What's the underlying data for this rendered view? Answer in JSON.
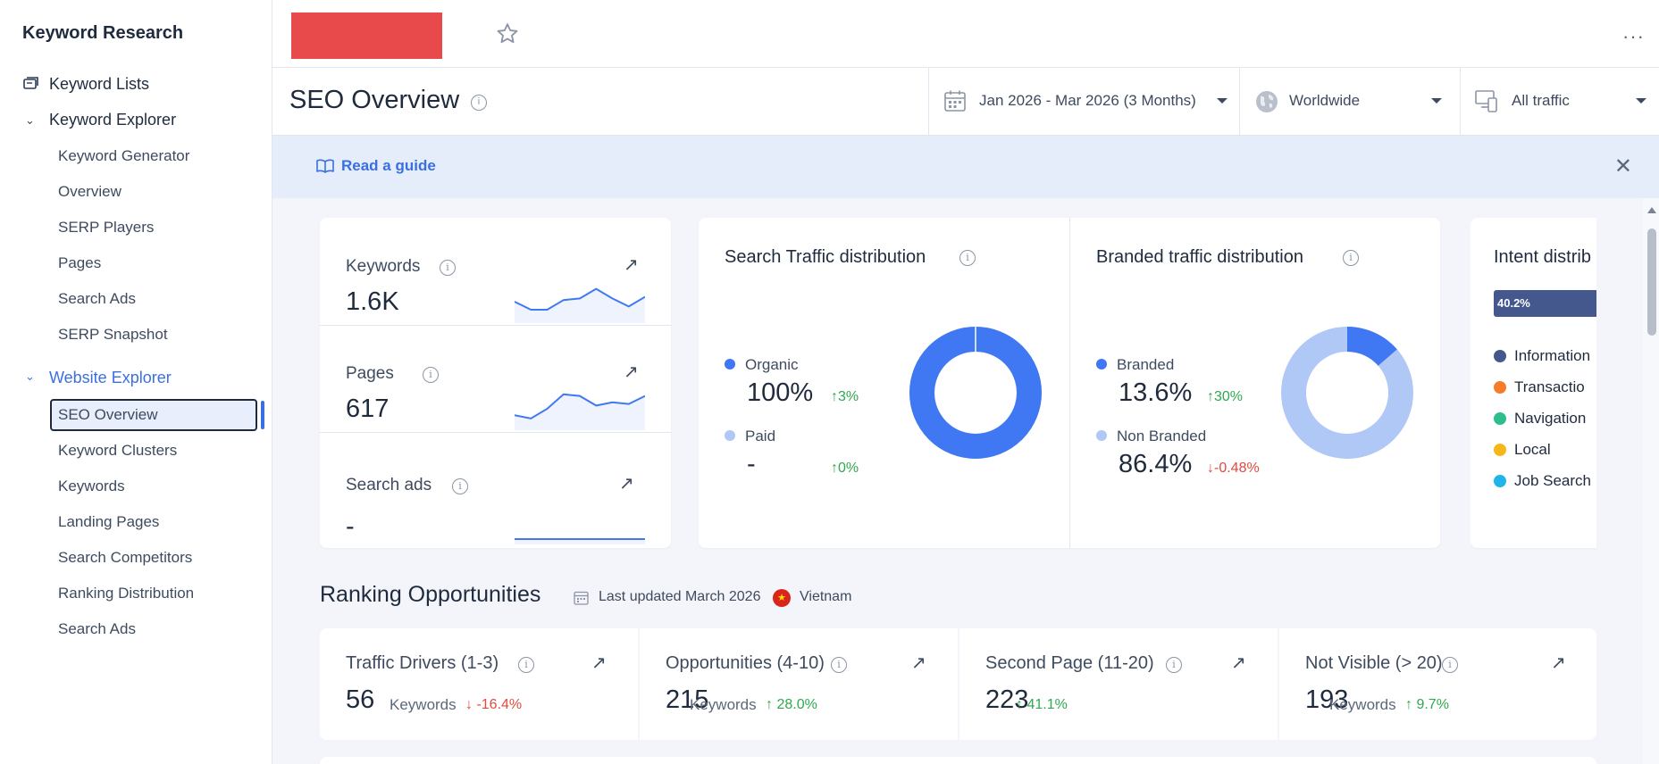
{
  "sidebar": {
    "title": "Keyword Research",
    "keyword_lists": "Keyword Lists",
    "keyword_explorer": "Keyword Explorer",
    "keyword_explorer_items": [
      "Keyword Generator",
      "Overview",
      "SERP Players",
      "Pages",
      "Search Ads",
      "SERP Snapshot"
    ],
    "website_explorer": "Website Explorer",
    "website_explorer_items": [
      "SEO Overview",
      "Keyword Clusters",
      "Keywords",
      "Landing Pages",
      "Search Competitors",
      "Ranking Distribution",
      "Search Ads"
    ],
    "selected": "SEO Overview"
  },
  "topbar": {
    "more_label": "···"
  },
  "header": {
    "title": "SEO Overview",
    "date_range": "Jan 2026 - Mar 2026 (3 Months)",
    "location": "Worldwide",
    "traffic": "All traffic"
  },
  "guide": {
    "link": "Read a guide",
    "close": "✕"
  },
  "metrics": [
    {
      "label": "Keywords",
      "value": "1.6K",
      "sparkline": [
        0.5,
        0.25,
        0.25,
        0.55,
        0.6,
        0.9,
        0.6,
        0.35,
        0.65
      ]
    },
    {
      "label": "Pages",
      "value": "617",
      "sparkline": [
        0.3,
        0.2,
        0.5,
        0.95,
        0.9,
        0.6,
        0.7,
        0.65,
        0.9
      ]
    },
    {
      "label": "Search ads",
      "value": "-",
      "sparkline": [
        0,
        0,
        0,
        0,
        0,
        0,
        0,
        0,
        0
      ]
    }
  ],
  "search_traffic": {
    "title": "Search Traffic distribution",
    "organic_label": "Organic",
    "organic_value": "100%",
    "organic_change": "↑3%",
    "paid_label": "Paid",
    "paid_value": "-",
    "paid_change": "↑0%",
    "organic_share": 1.0,
    "color_organic": "#3f78f2",
    "color_paid": "#b0c8f6"
  },
  "branded_traffic": {
    "title": "Branded traffic distribution",
    "branded_label": "Branded",
    "branded_value": "13.6%",
    "branded_change": "↑30%",
    "nonbranded_label": "Non Branded",
    "nonbranded_value": "86.4%",
    "nonbranded_change": "↓-0.48%",
    "branded_share": 0.136,
    "color_branded": "#3f78f2",
    "color_nonbranded": "#b0c8f6"
  },
  "intent": {
    "title": "Intent distrib",
    "bar_label": "40.2%",
    "items": [
      {
        "label": "Information",
        "color": "#44588e"
      },
      {
        "label": "Transactio",
        "color": "#f57c2b"
      },
      {
        "label": "Navigation",
        "color": "#2ebd8c"
      },
      {
        "label": "Local",
        "color": "#f5b818"
      },
      {
        "label": "Job Search",
        "color": "#1fb5e8"
      }
    ]
  },
  "ranking": {
    "title": "Ranking Opportunities",
    "updated": "Last updated March 2026",
    "country": "Vietnam",
    "cards": [
      {
        "label": "Traffic Drivers (1-3)",
        "value": "56",
        "unit": "Keywords",
        "change": "↓ -16.4%",
        "direction": "down"
      },
      {
        "label": "Opportunities (4-10)",
        "value": "215",
        "unit": "Keywords",
        "change": "↑ 28.0%",
        "direction": "up"
      },
      {
        "label": "Second Page (11-20)",
        "value": "223",
        "unit": "",
        "change": "↑ 41.1%",
        "direction": "up"
      },
      {
        "label": "Not Visible (> 20)",
        "value": "193",
        "unit": "Keywords",
        "change": "↑ 9.7%",
        "direction": "up"
      }
    ]
  }
}
